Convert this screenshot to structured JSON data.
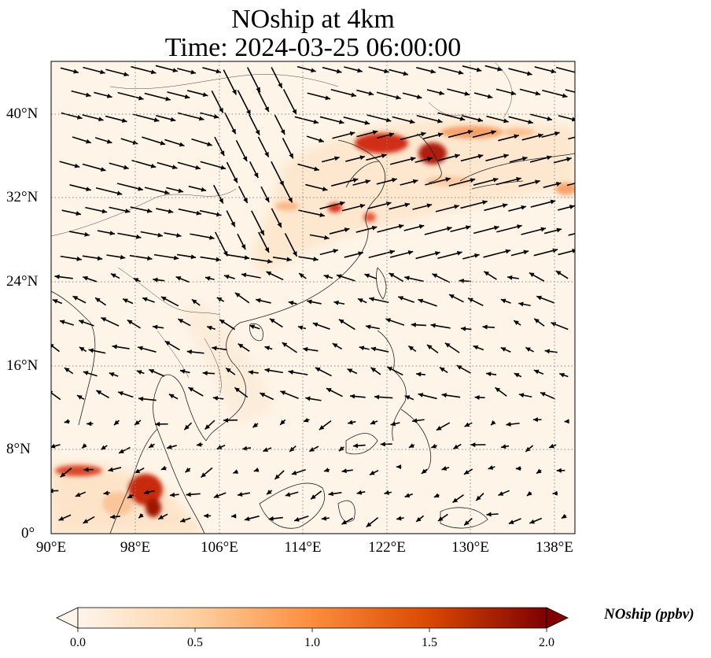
{
  "title_line1": "NOship at 4km",
  "title_line2": "Time: 2024-03-25 06:00:00",
  "x_ticks": [
    "90°E",
    "98°E",
    "106°E",
    "114°E",
    "122°E",
    "130°E",
    "138°E"
  ],
  "y_ticks": [
    "40°N",
    "32°N",
    "24°N",
    "16°N",
    "8°N",
    "0°"
  ],
  "colorbar": {
    "label": "NOship (ppbv)",
    "ticks": [
      "0.0",
      "0.5",
      "1.0",
      "1.5",
      "2.0"
    ],
    "range": [
      0,
      2.0
    ],
    "extend": "both",
    "colormap": [
      "#fff5eb",
      "#fdd0a2",
      "#fd8d3c",
      "#d94801",
      "#7f0000"
    ]
  },
  "map": {
    "projection": "PlateCarree",
    "lon_range": [
      90,
      140
    ],
    "lat_range": [
      0,
      45
    ],
    "gridlines": "dotted",
    "wind_vectors": true
  }
}
